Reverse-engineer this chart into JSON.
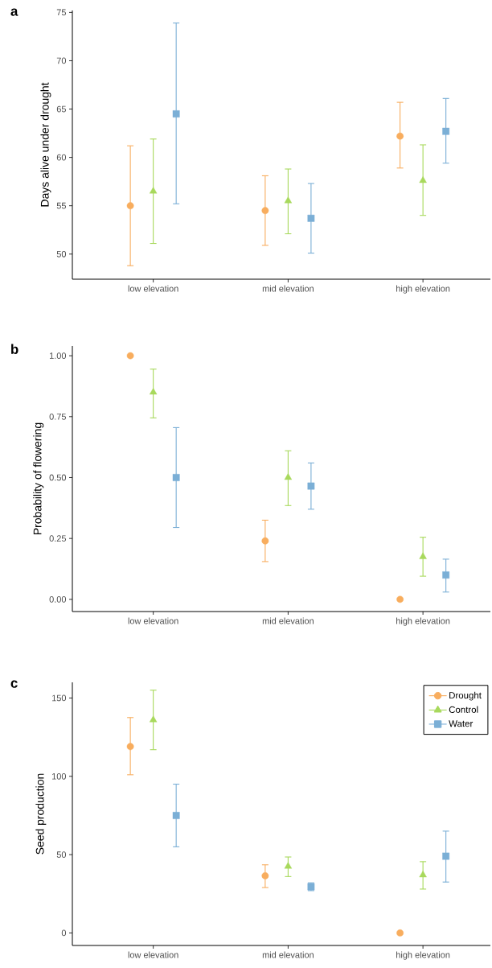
{
  "chart_data": [
    {
      "type": "scatter",
      "title": "a",
      "ylabel": "Days alive under drought",
      "categories": [
        "low elevation",
        "mid elevation",
        "high elevation"
      ],
      "ylim": [
        47.4,
        75.2
      ],
      "yticks": [
        50,
        55,
        60,
        65,
        70,
        75
      ],
      "grid": false,
      "series": [
        {
          "color": "#f8ad5e",
          "marker": "circle",
          "values": [
            55.0,
            54.5,
            62.2
          ],
          "errors": [
            [
              48.8,
              61.2
            ],
            [
              50.9,
              58.1
            ],
            [
              58.9,
              65.7
            ]
          ]
        },
        {
          "color": "#a8d95c",
          "marker": "triangle",
          "values": [
            56.5,
            55.5,
            57.6
          ],
          "errors": [
            [
              51.1,
              61.9
            ],
            [
              52.1,
              58.8
            ],
            [
              54.0,
              61.3
            ]
          ]
        },
        {
          "color": "#7bafd6",
          "marker": "square",
          "values": [
            64.5,
            53.7,
            62.7
          ],
          "errors": [
            [
              55.2,
              73.9
            ],
            [
              50.1,
              57.3
            ],
            [
              59.4,
              66.1
            ]
          ]
        }
      ]
    },
    {
      "type": "scatter",
      "title": "b",
      "ylabel": "Probability of flowering",
      "categories": [
        "low elevation",
        "mid elevation",
        "high elevation"
      ],
      "ylim": [
        -0.05,
        1.04
      ],
      "yticks": [
        {
          "value": 0,
          "label": "0.00"
        },
        {
          "value": 0.25,
          "label": "0.25"
        },
        {
          "value": 0.5,
          "label": "0.50"
        },
        {
          "value": 0.75,
          "label": "0.75"
        },
        {
          "value": 1,
          "label": "1.00"
        }
      ],
      "grid": false,
      "series": [
        {
          "color": "#f8ad5e",
          "marker": "circle",
          "values": [
            1.0,
            0.24,
            0.0
          ],
          "errors": [
            null,
            [
              0.155,
              0.325
            ],
            null
          ]
        },
        {
          "color": "#a8d95c",
          "marker": "triangle",
          "values": [
            0.85,
            0.5,
            0.175
          ],
          "errors": [
            [
              0.745,
              0.945
            ],
            [
              0.385,
              0.61
            ],
            [
              0.095,
              0.255
            ]
          ]
        },
        {
          "color": "#7bafd6",
          "marker": "square",
          "values": [
            0.5,
            0.465,
            0.1
          ],
          "errors": [
            [
              0.295,
              0.705
            ],
            [
              0.37,
              0.56
            ],
            [
              0.03,
              0.165
            ]
          ]
        }
      ]
    },
    {
      "type": "scatter",
      "title": "c",
      "ylabel": "Seed production",
      "categories": [
        "low elevation",
        "mid elevation",
        "high elevation"
      ],
      "ylim": [
        -8,
        160
      ],
      "yticks": [
        0,
        50,
        100,
        150
      ],
      "grid": false,
      "legend": "top right",
      "series": [
        {
          "name": "Drought",
          "color": "#f8ad5e",
          "marker": "circle",
          "values": [
            119,
            36.5,
            0
          ],
          "errors": [
            [
              101,
              137.5
            ],
            [
              29,
              43.5
            ],
            null
          ]
        },
        {
          "name": "Control",
          "color": "#a8d95c",
          "marker": "triangle",
          "values": [
            136,
            42.5,
            37
          ],
          "errors": [
            [
              117,
              155
            ],
            [
              36,
              48.5
            ],
            [
              28,
              45.5
            ]
          ]
        },
        {
          "name": "Water",
          "color": "#7bafd6",
          "marker": "square",
          "values": [
            75,
            29.5,
            49
          ],
          "errors": [
            [
              55,
              95
            ],
            [
              27,
              32
            ],
            [
              32.5,
              65
            ]
          ]
        }
      ]
    }
  ]
}
